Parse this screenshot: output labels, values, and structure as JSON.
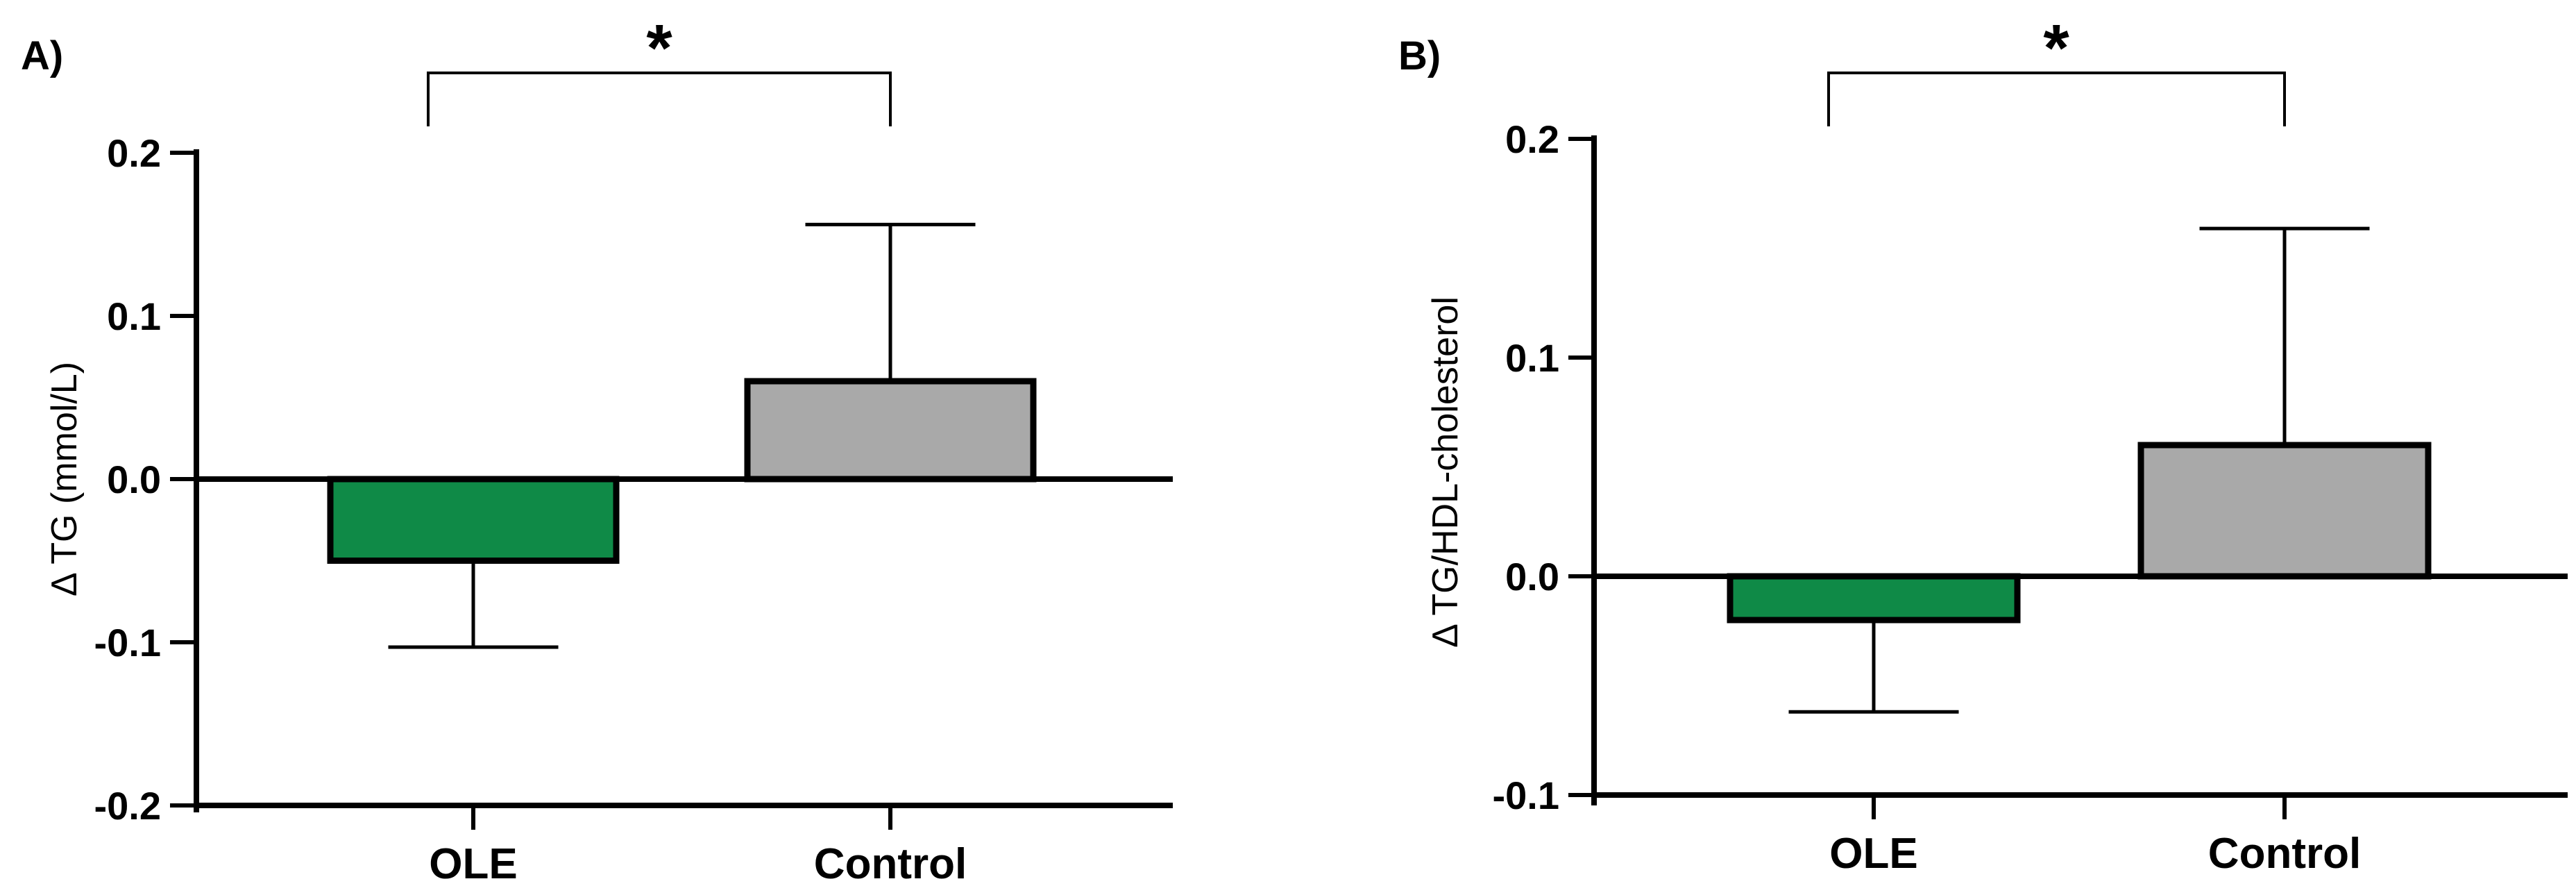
{
  "chart_data": [
    {
      "panel": "A)",
      "type": "bar",
      "categories": [
        "OLE",
        "Control"
      ],
      "values": [
        -0.05,
        0.06
      ],
      "error_bars": [
        0.053,
        0.096
      ],
      "colors": [
        "#0f8a47",
        "#a9a9a9"
      ],
      "ylabel": "Δ TG (mmol/L)",
      "xlabel": "",
      "ylim": [
        -0.2,
        0.2
      ],
      "yticks": [
        -0.2,
        -0.1,
        0.0,
        0.1,
        0.2
      ],
      "ytick_labels": [
        "-0.2",
        "-0.1",
        "0.0",
        "0.1",
        "0.2"
      ],
      "significance": {
        "between": [
          "OLE",
          "Control"
        ],
        "label": "*"
      }
    },
    {
      "panel": "B)",
      "type": "bar",
      "categories": [
        "OLE",
        "Control"
      ],
      "values": [
        -0.02,
        0.06
      ],
      "error_bars": [
        0.042,
        0.099
      ],
      "colors": [
        "#0f8a47",
        "#a9a9a9"
      ],
      "ylabel": "Δ TG/HDL-cholesterol",
      "xlabel": "",
      "ylim": [
        -0.1,
        0.2
      ],
      "yticks": [
        -0.1,
        0.0,
        0.1,
        0.2
      ],
      "ytick_labels": [
        "-0.1",
        "0.0",
        "0.1",
        "0.2"
      ],
      "significance": {
        "between": [
          "OLE",
          "Control"
        ],
        "label": "*"
      }
    }
  ]
}
